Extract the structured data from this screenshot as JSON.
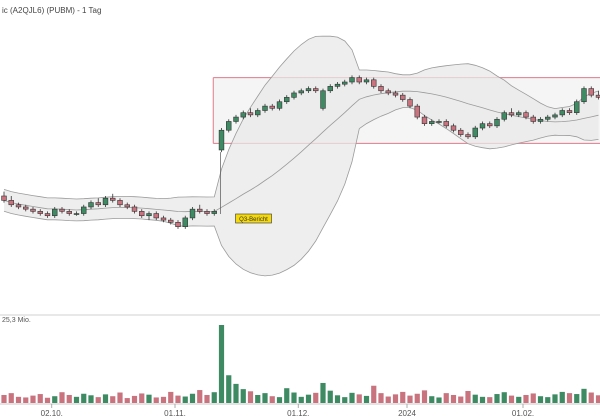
{
  "header": {
    "title": "ic (A2QJL6) (PUBM) - 1 Tag"
  },
  "chart_data": {
    "type": "candlestick",
    "title": "ic (A2QJL6) (PUBM) - 1 Tag",
    "x_ticks": [
      "02.10.",
      "01.11.",
      "01.12.",
      "2024",
      "01.02."
    ],
    "annotations": [
      {
        "text": "Q3-Bericht"
      }
    ],
    "volume_label": "25,3 Mio.",
    "range_box": {
      "upper": 73,
      "lower": 58
    },
    "grid": false,
    "colors": {
      "up": "#3d8a63",
      "down": "#c9737f",
      "band": "#e8e8e8",
      "band_line": "#9a9a9a",
      "range_line": "#e07a8a",
      "note_bg": "#f5d90a"
    },
    "candles": [
      [
        46.0,
        47.0,
        44.5,
        45.0
      ],
      [
        45.0,
        46.0,
        43.5,
        44.0
      ],
      [
        44.0,
        44.5,
        43.0,
        43.5
      ],
      [
        43.5,
        44.0,
        42.5,
        43.0
      ],
      [
        43.0,
        43.5,
        42.0,
        42.5
      ],
      [
        42.5,
        43.0,
        41.5,
        42.0
      ],
      [
        42.0,
        42.5,
        41.0,
        41.5
      ],
      [
        41.5,
        43.5,
        41.0,
        43.0
      ],
      [
        43.0,
        43.5,
        42.0,
        42.5
      ],
      [
        42.5,
        43.0,
        41.5,
        42.0
      ],
      [
        42.0,
        42.5,
        41.5,
        42.0
      ],
      [
        42.0,
        44.0,
        41.5,
        43.5
      ],
      [
        43.5,
        45.0,
        43.0,
        44.5
      ],
      [
        44.5,
        45.5,
        43.5,
        44.0
      ],
      [
        44.0,
        46.0,
        43.5,
        45.5
      ],
      [
        45.5,
        46.5,
        44.5,
        45.0
      ],
      [
        45.0,
        45.5,
        43.5,
        44.0
      ],
      [
        44.0,
        44.5,
        43.0,
        43.5
      ],
      [
        43.5,
        44.0,
        42.0,
        42.5
      ],
      [
        42.5,
        43.0,
        41.0,
        41.5
      ],
      [
        41.5,
        42.5,
        40.5,
        42.0
      ],
      [
        42.0,
        42.5,
        40.5,
        41.0
      ],
      [
        41.0,
        41.5,
        40.0,
        40.5
      ],
      [
        40.5,
        41.0,
        39.5,
        40.0
      ],
      [
        40.0,
        40.5,
        38.5,
        39.0
      ],
      [
        39.0,
        41.5,
        38.5,
        41.0
      ],
      [
        41.0,
        43.5,
        40.5,
        43.0
      ],
      [
        43.0,
        44.0,
        42.0,
        42.5
      ],
      [
        42.5,
        43.0,
        41.5,
        42.0
      ],
      [
        42.0,
        43.0,
        41.5,
        42.5
      ],
      [
        56.5,
        61.5,
        56.0,
        61.0
      ],
      [
        61.0,
        63.5,
        60.5,
        63.0
      ],
      [
        63.0,
        64.5,
        62.5,
        64.0
      ],
      [
        64.0,
        65.5,
        63.5,
        65.0
      ],
      [
        65.0,
        66.0,
        64.0,
        64.5
      ],
      [
        64.5,
        66.0,
        64.0,
        65.5
      ],
      [
        65.5,
        67.0,
        65.0,
        66.5
      ],
      [
        66.5,
        67.0,
        65.5,
        66.0
      ],
      [
        66.0,
        68.0,
        65.5,
        67.5
      ],
      [
        67.5,
        69.0,
        67.0,
        68.5
      ],
      [
        68.5,
        70.0,
        68.0,
        69.5
      ],
      [
        69.5,
        70.5,
        69.0,
        70.0
      ],
      [
        70.0,
        71.0,
        69.5,
        70.5
      ],
      [
        70.5,
        71.0,
        69.5,
        70.0
      ],
      [
        66.0,
        70.5,
        65.5,
        70.0
      ],
      [
        70.0,
        71.5,
        69.5,
        71.0
      ],
      [
        71.0,
        72.0,
        70.5,
        71.5
      ],
      [
        71.5,
        72.5,
        71.0,
        72.0
      ],
      [
        72.0,
        73.5,
        71.5,
        73.0
      ],
      [
        73.0,
        73.5,
        71.5,
        72.0
      ],
      [
        72.0,
        73.0,
        71.5,
        72.5
      ],
      [
        72.5,
        73.0,
        70.5,
        71.0
      ],
      [
        71.0,
        71.5,
        69.5,
        70.0
      ],
      [
        70.0,
        70.5,
        69.0,
        69.5
      ],
      [
        69.5,
        70.0,
        68.5,
        69.0
      ],
      [
        69.0,
        69.5,
        67.5,
        68.0
      ],
      [
        68.0,
        68.5,
        66.0,
        66.5
      ],
      [
        66.5,
        67.0,
        63.5,
        64.0
      ],
      [
        64.0,
        64.5,
        62.0,
        62.5
      ],
      [
        62.5,
        63.5,
        62.0,
        63.0
      ],
      [
        63.0,
        63.5,
        62.5,
        63.0
      ],
      [
        63.0,
        63.5,
        61.5,
        62.0
      ],
      [
        62.0,
        62.5,
        60.5,
        61.0
      ],
      [
        61.0,
        61.5,
        59.5,
        60.0
      ],
      [
        60.0,
        60.5,
        59.0,
        59.5
      ],
      [
        59.5,
        62.0,
        59.0,
        61.5
      ],
      [
        61.5,
        63.0,
        61.0,
        62.5
      ],
      [
        62.5,
        63.0,
        61.5,
        62.0
      ],
      [
        62.0,
        64.0,
        61.5,
        63.5
      ],
      [
        63.5,
        65.5,
        63.0,
        65.0
      ],
      [
        65.0,
        66.0,
        64.0,
        64.5
      ],
      [
        64.5,
        65.5,
        64.0,
        65.0
      ],
      [
        65.0,
        65.5,
        63.5,
        64.0
      ],
      [
        64.0,
        64.5,
        62.5,
        63.0
      ],
      [
        63.0,
        64.0,
        62.5,
        63.5
      ],
      [
        63.5,
        64.5,
        63.0,
        64.0
      ],
      [
        64.0,
        65.0,
        63.5,
        64.5
      ],
      [
        64.5,
        66.0,
        64.0,
        65.5
      ],
      [
        65.5,
        66.0,
        64.5,
        65.0
      ],
      [
        65.0,
        68.0,
        64.5,
        67.5
      ],
      [
        67.5,
        71.0,
        67.0,
        70.5
      ],
      [
        70.5,
        71.0,
        68.5,
        69.0
      ],
      [
        69.0,
        70.0,
        68.0,
        68.5
      ]
    ],
    "volume": [
      2.6,
      3.2,
      2.0,
      1.8,
      2.4,
      2.9,
      1.7,
      2.2,
      3.5,
      2.6,
      2.0,
      3.0,
      2.5,
      1.9,
      2.8,
      2.2,
      3.4,
      1.6,
      2.3,
      3.1,
      2.7,
      1.8,
      2.0,
      3.6,
      2.4,
      2.1,
      3.0,
      4.2,
      2.6,
      3.5,
      25.3,
      9.0,
      6.2,
      4.5,
      3.8,
      2.6,
      3.2,
      2.2,
      1.9,
      4.8,
      3.4,
      2.0,
      2.7,
      3.3,
      6.5,
      4.0,
      2.5,
      1.9,
      3.3,
      2.8,
      2.3,
      5.6,
      3.2,
      2.1,
      2.8,
      3.6,
      2.4,
      3.0,
      4.1,
      2.2,
      1.8,
      3.2,
      2.6,
      2.1,
      3.9,
      2.7,
      2.0,
      1.9,
      2.9,
      3.5,
      2.4,
      2.0,
      2.6,
      3.1,
      2.2,
      1.9,
      2.8,
      3.6,
      3.2,
      2.9,
      4.6,
      3.4,
      2.5
    ]
  }
}
